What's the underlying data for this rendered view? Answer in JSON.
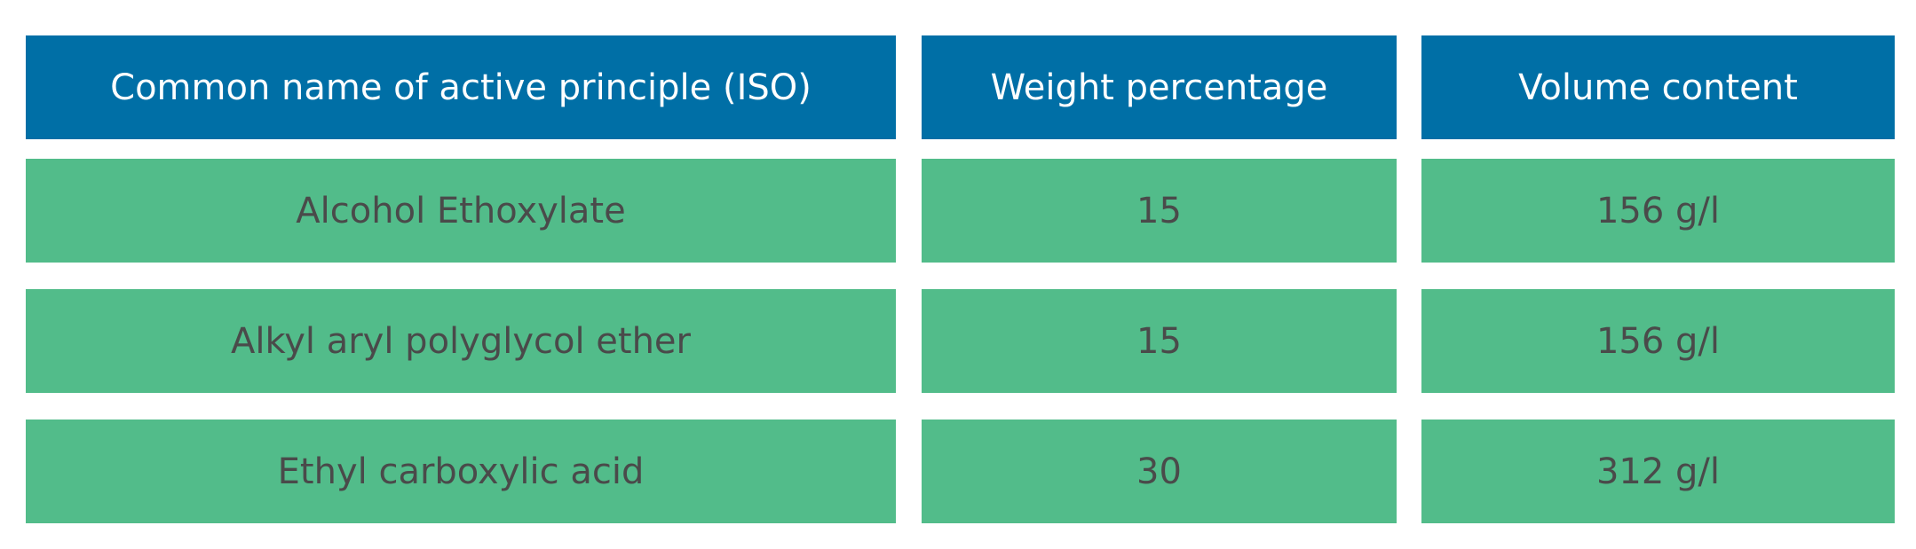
{
  "table": {
    "headers": [
      "Common name of active principle (ISO)",
      "Weight percentage",
      "Volume content"
    ],
    "rows": [
      [
        "Alcohol Ethoxylate",
        "15",
        "156 g/l"
      ],
      [
        "Alkyl aryl polyglycol ether",
        "15",
        "156 g/l"
      ],
      [
        "Ethyl carboxylic acid",
        "30",
        "312 g/l"
      ]
    ],
    "colors": {
      "header_bg": "#006fa6",
      "header_text": "#ffffff",
      "row_bg": "#52bc8a",
      "row_text": "#4a4a4a"
    }
  }
}
